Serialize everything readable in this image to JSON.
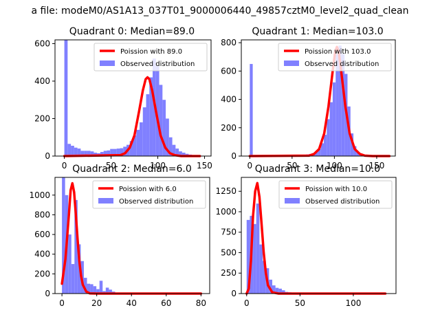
{
  "figure": {
    "suptitle": "a file: modeM0/AS1A13_037T01_9000006440_49857cztM0_level2_quad_clean",
    "background": "#ffffff"
  },
  "colors": {
    "poisson_line": "#ff0000",
    "observed_bars": "#8080ff"
  },
  "chart_data": [
    {
      "type": "bar",
      "title": "Quadrant 0: Median=89.0",
      "xlim": [
        -10,
        157
      ],
      "ylim": [
        0,
        620
      ],
      "xticks": [
        0,
        50,
        100,
        150
      ],
      "yticks": [
        0,
        200,
        400,
        600
      ],
      "bin_width": 3.5,
      "legend_position": "top-right",
      "poisson_label": "Poission with 89.0",
      "observed_label": "Observed distribution",
      "bins": [
        [
          0,
          620
        ],
        [
          3.5,
          65
        ],
        [
          7,
          55
        ],
        [
          10.5,
          45
        ],
        [
          14,
          40
        ],
        [
          17.5,
          28
        ],
        [
          21,
          28
        ],
        [
          24.5,
          28
        ],
        [
          28,
          25
        ],
        [
          31.5,
          18
        ],
        [
          35,
          15
        ],
        [
          38.5,
          22
        ],
        [
          42,
          28
        ],
        [
          45.5,
          30
        ],
        [
          49,
          38
        ],
        [
          52.5,
          38
        ],
        [
          56,
          40
        ],
        [
          59.5,
          42
        ],
        [
          63,
          50
        ],
        [
          66.5,
          60
        ],
        [
          70,
          80
        ],
        [
          73.5,
          110
        ],
        [
          77,
          140
        ],
        [
          80.5,
          180
        ],
        [
          84,
          260
        ],
        [
          87.5,
          330
        ],
        [
          91,
          420
        ],
        [
          94.5,
          520
        ],
        [
          98,
          480
        ],
        [
          101.5,
          380
        ],
        [
          105,
          300
        ],
        [
          108.5,
          200
        ],
        [
          112,
          100
        ],
        [
          115.5,
          60
        ],
        [
          119,
          40
        ],
        [
          122.5,
          25
        ],
        [
          126,
          18
        ],
        [
          129.5,
          12
        ],
        [
          133,
          8
        ],
        [
          136.5,
          5
        ],
        [
          140,
          4
        ],
        [
          143.5,
          2
        ]
      ],
      "poisson_curve": {
        "x": [
          0,
          60,
          65,
          70,
          75,
          80,
          84,
          87,
          89,
          91,
          94,
          98,
          103,
          108,
          113,
          118,
          125,
          145
        ],
        "y": [
          0,
          5,
          15,
          45,
          110,
          240,
          350,
          410,
          420,
          410,
          350,
          240,
          110,
          45,
          15,
          5,
          0,
          0
        ]
      }
    },
    {
      "type": "bar",
      "title": "Quadrant 1: Median=103.0",
      "xlim": [
        -10,
        172
      ],
      "ylim": [
        0,
        820
      ],
      "xticks": [
        0,
        50,
        100,
        150
      ],
      "yticks": [
        0,
        200,
        400,
        600,
        800
      ],
      "bin_width": 3.5,
      "legend_position": "top-right",
      "poisson_label": "Poission with 103.0",
      "observed_label": "Observed distribution",
      "bins": [
        [
          0,
          650
        ],
        [
          3.5,
          5
        ],
        [
          7,
          3
        ],
        [
          10.5,
          2
        ],
        [
          14,
          2
        ],
        [
          17.5,
          2
        ],
        [
          21,
          2
        ],
        [
          24.5,
          2
        ],
        [
          28,
          2
        ],
        [
          31.5,
          2
        ],
        [
          35,
          2
        ],
        [
          38.5,
          3
        ],
        [
          42,
          3
        ],
        [
          45.5,
          3
        ],
        [
          49,
          4
        ],
        [
          52.5,
          5
        ],
        [
          56,
          6
        ],
        [
          59.5,
          8
        ],
        [
          63,
          10
        ],
        [
          66.5,
          12
        ],
        [
          70,
          15
        ],
        [
          73.5,
          20
        ],
        [
          77,
          30
        ],
        [
          80.5,
          50
        ],
        [
          84,
          90
        ],
        [
          87.5,
          150
        ],
        [
          91,
          260
        ],
        [
          94.5,
          380
        ],
        [
          98,
          520
        ],
        [
          101.5,
          720
        ],
        [
          105,
          780
        ],
        [
          108.5,
          720
        ],
        [
          112,
          580
        ],
        [
          115.5,
          350
        ],
        [
          119,
          160
        ],
        [
          122.5,
          70
        ],
        [
          126,
          30
        ],
        [
          129.5,
          15
        ],
        [
          133,
          8
        ],
        [
          136.5,
          5
        ],
        [
          140,
          3
        ],
        [
          143.5,
          2
        ],
        [
          147,
          1
        ],
        [
          150.5,
          1
        ]
      ],
      "poisson_curve": {
        "x": [
          0,
          70,
          76,
          82,
          88,
          93,
          98,
          101,
          103,
          105,
          108,
          113,
          118,
          124,
          130,
          136,
          145,
          165
        ],
        "y": [
          0,
          3,
          15,
          50,
          160,
          350,
          600,
          740,
          770,
          740,
          600,
          350,
          160,
          50,
          15,
          3,
          0,
          0
        ]
      }
    },
    {
      "type": "bar",
      "title": "Quadrant 2: Median=6.0",
      "xlim": [
        -4,
        85
      ],
      "ylim": [
        0,
        1180
      ],
      "xticks": [
        0,
        20,
        40,
        60,
        80
      ],
      "yticks": [
        0,
        200,
        400,
        600,
        800,
        1000
      ],
      "bin_width": 1.8,
      "legend_position": "top-right",
      "poisson_label": "Poission with 6.0",
      "observed_label": "Observed distribution",
      "bins": [
        [
          0,
          1180
        ],
        [
          1.8,
          1000
        ],
        [
          3.6,
          600
        ],
        [
          5.4,
          300
        ],
        [
          7.2,
          950
        ],
        [
          9,
          500
        ],
        [
          10.8,
          330
        ],
        [
          12.6,
          160
        ],
        [
          14.4,
          100
        ],
        [
          16.2,
          95
        ],
        [
          18,
          75
        ],
        [
          19.8,
          45
        ],
        [
          21.6,
          130
        ],
        [
          23.4,
          25
        ],
        [
          25.2,
          60
        ],
        [
          27,
          40
        ],
        [
          28.8,
          20
        ],
        [
          30.6,
          10
        ],
        [
          32.4,
          8
        ],
        [
          34.2,
          5
        ],
        [
          36,
          4
        ],
        [
          37.8,
          3
        ],
        [
          39.6,
          2
        ]
      ],
      "poisson_curve": {
        "x": [
          0,
          2,
          4,
          5,
          6,
          7,
          8,
          9,
          10,
          11,
          12,
          14,
          16,
          20,
          80
        ],
        "y": [
          100,
          350,
          800,
          1050,
          1120,
          1030,
          800,
          550,
          330,
          180,
          90,
          20,
          2,
          0,
          0
        ]
      }
    },
    {
      "type": "bar",
      "title": "Quadrant 3: Median=10.0",
      "xlim": [
        -5,
        140
      ],
      "ylim": [
        0,
        1420
      ],
      "xticks": [
        0,
        50,
        100
      ],
      "yticks": [
        0,
        250,
        500,
        750,
        1000,
        1250
      ],
      "bin_width": 3,
      "legend_position": "top-right",
      "poisson_label": "Poission with 10.0",
      "observed_label": "Observed distribution",
      "bins": [
        [
          0,
          900
        ],
        [
          3,
          950
        ],
        [
          6,
          850
        ],
        [
          9,
          1100
        ],
        [
          12,
          600
        ],
        [
          15,
          400
        ],
        [
          18,
          310
        ],
        [
          21,
          170
        ],
        [
          24,
          100
        ],
        [
          27,
          70
        ],
        [
          30,
          60
        ],
        [
          33,
          40
        ],
        [
          36,
          20
        ],
        [
          39,
          15
        ],
        [
          42,
          12
        ],
        [
          45,
          8
        ],
        [
          48,
          5
        ],
        [
          51,
          3
        ],
        [
          54,
          2
        ]
      ],
      "poisson_curve": {
        "x": [
          0,
          2,
          4,
          6,
          8,
          10,
          12,
          14,
          16,
          18,
          20,
          24,
          30,
          130
        ],
        "y": [
          0,
          60,
          400,
          950,
          1250,
          1350,
          1180,
          850,
          500,
          250,
          100,
          15,
          0,
          0
        ]
      }
    }
  ]
}
